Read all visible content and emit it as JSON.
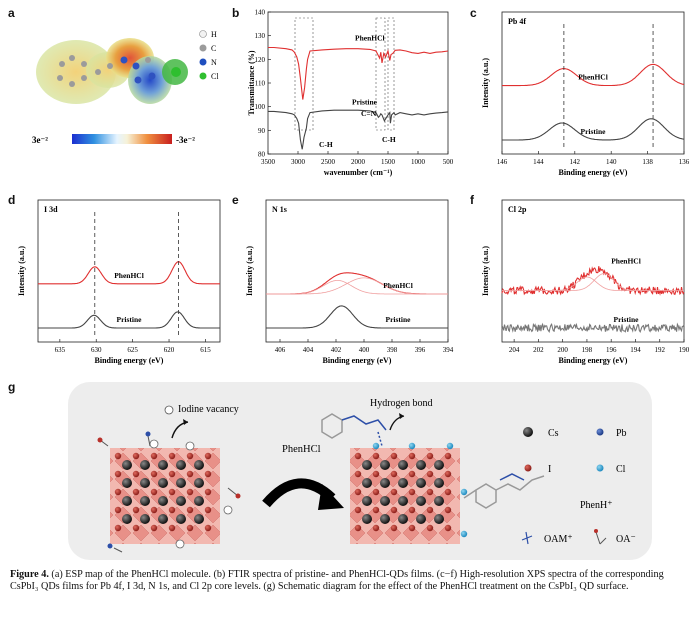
{
  "figure": {
    "panel_labels": [
      "a",
      "b",
      "c",
      "d",
      "e",
      "f",
      "g"
    ],
    "caption": {
      "label": "Figure 4.",
      "text": "(a) ESP map of the PhenHCl molecule. (b) FTIR spectra of pristine- and PhenHCl-QDs films. (c−f) High-resolution XPS spectra of the corresponding CsPbI₃ QDs films for Pb 4f, I 3d, N 1s, and Cl 2p core levels. (g) Schematic diagram for the effect of the PhenHCl treatment on the CsPbI₃ QD surface."
    }
  },
  "panel_a": {
    "legend": [
      "H",
      "C",
      "N",
      "Cl"
    ],
    "colors": {
      "H": "#f2f2f2",
      "C": "#9b9b9b",
      "N": "#1f4fbf",
      "Cl": "#2fbf2f"
    },
    "colorbar_min": "3e⁻²",
    "colorbar_max": "-3e⁻²"
  },
  "chart_data": [
    {
      "id": "b",
      "type": "line",
      "title": "",
      "xlabel": "wavenumber (cm⁻¹)",
      "ylabel": "Transmittance (%)",
      "xlim": [
        3500,
        500
      ],
      "ylim": [
        80,
        140
      ],
      "xticks": [
        3500,
        3000,
        2500,
        2000,
        1500,
        1000,
        500
      ],
      "yticks": [
        80,
        90,
        100,
        110,
        120,
        130,
        140
      ],
      "series": [
        {
          "name": "PhenHCl",
          "color": "#e03030",
          "x": [
            3500,
            3400,
            3200,
            3100,
            3060,
            3020,
            2990,
            2960,
            2920,
            2890,
            2860,
            2840,
            2800,
            2600,
            2400,
            2200,
            2000,
            1800,
            1700,
            1640,
            1620,
            1600,
            1570,
            1540,
            1500,
            1470,
            1450,
            1420,
            1380,
            1300,
            1200,
            1100,
            1000,
            900,
            800,
            700,
            600,
            500
          ],
          "y": [
            125,
            125,
            124.5,
            124,
            123,
            121,
            118,
            112,
            103,
            108,
            116,
            120,
            123.5,
            124,
            124.3,
            124.5,
            124.5,
            124.2,
            123.5,
            120.5,
            123,
            118.5,
            122.5,
            121,
            123.5,
            119.5,
            122,
            122.5,
            123.8,
            124,
            123.5,
            122.8,
            122.5,
            123,
            122.5,
            123,
            123.2,
            123.5
          ]
        },
        {
          "name": "Pristine",
          "color": "#444444",
          "x": [
            3500,
            3400,
            3200,
            3100,
            3060,
            3020,
            2990,
            2960,
            2930,
            2900,
            2860,
            2840,
            2800,
            2600,
            2400,
            2200,
            2000,
            1800,
            1700,
            1660,
            1640,
            1620,
            1600,
            1560,
            1500,
            1470,
            1460,
            1440,
            1400,
            1380,
            1300,
            1200,
            1100,
            1000,
            900,
            800,
            700,
            600,
            500
          ],
          "y": [
            98,
            98,
            97.5,
            97,
            96.5,
            95,
            93,
            86,
            82,
            87,
            91,
            95,
            97.5,
            98.2,
            98.5,
            98.5,
            98.5,
            98.2,
            97.5,
            95.5,
            96,
            97,
            96.5,
            94,
            96.5,
            97.5,
            93,
            96.5,
            97.5,
            96.5,
            97.5,
            97,
            96.5,
            97,
            96.5,
            97,
            97.3,
            97.5,
            97.8
          ]
        }
      ],
      "annotations": [
        "PhenHCl",
        "Pristine",
        "C-H",
        "C=N",
        "C-H"
      ]
    },
    {
      "id": "c",
      "type": "line",
      "title": "Pb 4f",
      "xlabel": "Binding energy (eV)",
      "ylabel": "Intensity (a.u.)",
      "xlim": [
        146,
        136
      ],
      "xticks": [
        146,
        144,
        142,
        140,
        138,
        136
      ],
      "series": [
        {
          "name": "PhenHCl",
          "color": "#e03030",
          "peaks": [
            {
              "center": 142.6,
              "width": 0.7,
              "height": 1.0
            },
            {
              "center": 137.7,
              "width": 0.7,
              "height": 1.25
            }
          ],
          "baseline": 0.0,
          "offset": 3.2
        },
        {
          "name": "Pristine",
          "color": "#444444",
          "peaks": [
            {
              "center": 142.7,
              "width": 0.7,
              "height": 1.0
            },
            {
              "center": 137.8,
              "width": 0.7,
              "height": 1.25
            }
          ],
          "baseline": 0.0,
          "offset": 0
        }
      ],
      "dashed_lines": [
        142.6,
        137.7
      ],
      "annotations": [
        "PhenHCl",
        "Pristine"
      ]
    },
    {
      "id": "d",
      "type": "line",
      "title": "I 3d",
      "xlabel": "Binding energy (eV)",
      "ylabel": "Intensity (a.u.)",
      "xlim": [
        638,
        613
      ],
      "xticks": [
        635,
        630,
        625,
        620,
        615
      ],
      "series": [
        {
          "name": "PhenHCl",
          "color": "#e03030",
          "peaks": [
            {
              "center": 630.2,
              "width": 0.9,
              "height": 1.0
            },
            {
              "center": 618.7,
              "width": 0.9,
              "height": 1.3
            }
          ],
          "baseline": 0.0,
          "offset": 2.6
        },
        {
          "name": "Pristine",
          "color": "#444444",
          "peaks": [
            {
              "center": 630.3,
              "width": 0.9,
              "height": 0.75
            },
            {
              "center": 618.8,
              "width": 0.9,
              "height": 0.95
            }
          ],
          "baseline": 0.0,
          "offset": 0
        }
      ],
      "dashed_lines": [
        630.2,
        618.7
      ],
      "annotations": [
        "PhenHCl",
        "Pristine"
      ]
    },
    {
      "id": "e",
      "type": "line",
      "title": "N 1s",
      "xlabel": "Binding energy (eV)",
      "ylabel": "Intensity (a.u.)",
      "xlim": [
        407,
        394
      ],
      "xticks": [
        406,
        404,
        402,
        400,
        398,
        396,
        394
      ],
      "series": [
        {
          "name": "PhenHCl",
          "color": "#e03030",
          "peaks": [
            {
              "center": 401.9,
              "width": 1.0,
              "height": 0.8
            },
            {
              "center": 400.0,
              "width": 1.3,
              "height": 0.95
            }
          ],
          "baseline": 0.0,
          "offset": 2.0
        },
        {
          "name": "Pristine",
          "color": "#444444",
          "peaks": [
            {
              "center": 401.6,
              "width": 0.8,
              "height": 1.3
            }
          ],
          "baseline": 0.0,
          "offset": 0
        }
      ],
      "annotations": [
        "PhenHCl",
        "Pristine"
      ]
    },
    {
      "id": "f",
      "type": "line",
      "title": "Cl 2p",
      "xlabel": "Binding energy (eV)",
      "ylabel": "Intensity (a.u.)",
      "xlim": [
        205,
        190
      ],
      "xticks": [
        204,
        202,
        200,
        198,
        196,
        194,
        192,
        190
      ],
      "series": [
        {
          "name": "PhenHCl",
          "color": "#e03030",
          "peaks": [
            {
              "center": 198.0,
              "width": 0.8,
              "height": 0.8
            },
            {
              "center": 196.6,
              "width": 0.8,
              "height": 1.0
            }
          ],
          "baseline": 0.0,
          "offset": 2.2,
          "noisy": true
        },
        {
          "name": "Pristine",
          "color": "#777777",
          "peaks": [],
          "baseline": 0.0,
          "offset": 0,
          "noisy": true
        }
      ],
      "annotations": [
        "PhenHCl",
        "Pristine"
      ]
    }
  ],
  "panel_g": {
    "label_iodine_vacancy": "Iodine vacancy",
    "label_hydrogen_bond": "Hydrogen bond",
    "arrow_label": "PhenHCl",
    "legend": [
      {
        "name": "Cs",
        "color": "#1a1a1a"
      },
      {
        "name": "Pb",
        "color": "#2d4fa8"
      },
      {
        "name": "I",
        "color": "#b8302a"
      },
      {
        "name": "Cl",
        "color": "#37a8d8"
      },
      {
        "name": "PhenH⁺"
      },
      {
        "name": "OAM⁺"
      },
      {
        "name": "OA⁻"
      }
    ]
  }
}
